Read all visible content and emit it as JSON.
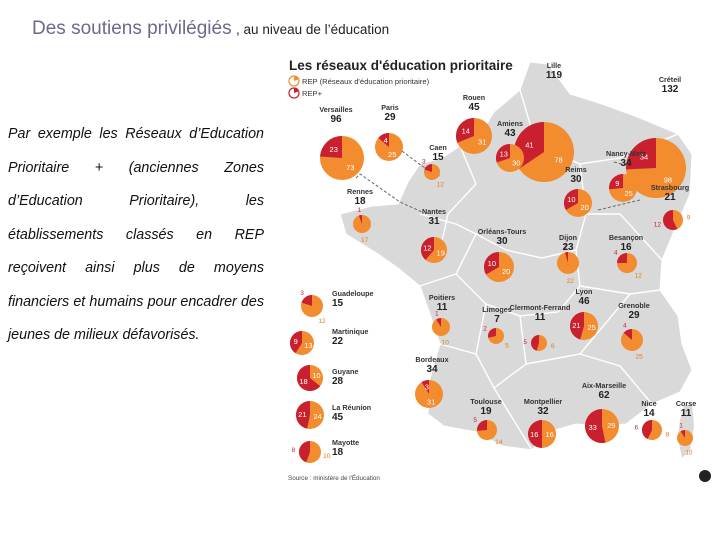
{
  "title": {
    "main": "Des soutiens privilégiés",
    "suffix": ", au niveau de l’éducation"
  },
  "paragraph": "Par exemple les Réseaux d’Education Prioritaire + (anciennes Zones d’Education Prioritaire), les établissements classés en REP reçoivent ainsi plus de moyens financiers et humains pour encadrer des jeunes de milieux défavorisés.",
  "map": {
    "title": "Les réseaux d'éducation prioritaire",
    "legend": [
      {
        "label": "REP (Réseaux d'éducation prioritaire)",
        "color": "#f28c2e"
      },
      {
        "label": "REP+",
        "color": "#c8202f"
      }
    ],
    "source": "Source : ministère de l'Éducation",
    "colors": {
      "rep": "#f28c2e",
      "rep_plus": "#c8202f",
      "land": "#d9d9d9",
      "border": "#ffffff"
    },
    "academies": [
      {
        "name": "Lille",
        "total": "119",
        "rep": 78,
        "rep_plus": 41
      },
      {
        "name": "Créteil",
        "total": "132",
        "rep": 98,
        "rep_plus": 34
      },
      {
        "name": "Versailles",
        "total": "96",
        "rep": 73,
        "rep_plus": 23
      },
      {
        "name": "Paris",
        "total": "29",
        "rep": 25,
        "rep_plus": 4
      },
      {
        "name": "Rouen",
        "total": "45",
        "rep": 31,
        "rep_plus": 14
      },
      {
        "name": "Amiens",
        "total": "43",
        "rep": 30,
        "rep_plus": 13
      },
      {
        "name": "Caen",
        "total": "15",
        "rep": 12,
        "rep_plus": 3
      },
      {
        "name": "Nancy-Metz",
        "total": "34",
        "rep": 25,
        "rep_plus": 9
      },
      {
        "name": "Reims",
        "total": "30",
        "rep": 20,
        "rep_plus": 10
      },
      {
        "name": "Strasbourg",
        "total": "21",
        "rep": 9,
        "rep_plus": 12
      },
      {
        "name": "Rennes",
        "total": "18",
        "rep": 17,
        "rep_plus": 1
      },
      {
        "name": "Nantes",
        "total": "31",
        "rep": 19,
        "rep_plus": 12
      },
      {
        "name": "Orléans-Tours",
        "total": "30",
        "rep": 20,
        "rep_plus": 10
      },
      {
        "name": "Dijon",
        "total": "23",
        "rep": 22,
        "rep_plus": 1
      },
      {
        "name": "Besançon",
        "total": "16",
        "rep": 12,
        "rep_plus": 4
      },
      {
        "name": "Poitiers",
        "total": "11",
        "rep": 10,
        "rep_plus": 1
      },
      {
        "name": "Limoges",
        "total": "7",
        "rep": 5,
        "rep_plus": 2
      },
      {
        "name": "Clermont-Ferrand",
        "total": "11",
        "rep": 6,
        "rep_plus": 5
      },
      {
        "name": "Lyon",
        "total": "46",
        "rep": 25,
        "rep_plus": 21
      },
      {
        "name": "Grenoble",
        "total": "29",
        "rep": 25,
        "rep_plus": 4
      },
      {
        "name": "Bordeaux",
        "total": "34",
        "rep": 31,
        "rep_plus": 3
      },
      {
        "name": "Toulouse",
        "total": "19",
        "rep": 14,
        "rep_plus": 5
      },
      {
        "name": "Montpellier",
        "total": "32",
        "rep": 16,
        "rep_plus": 16
      },
      {
        "name": "Aix-Marseille",
        "total": "62",
        "rep": 29,
        "rep_plus": 33
      },
      {
        "name": "Nice",
        "total": "14",
        "rep": 8,
        "rep_plus": 6
      },
      {
        "name": "Corse",
        "total": "11",
        "rep": 10,
        "rep_plus": 1
      }
    ],
    "overseas": [
      {
        "name": "Guadeloupe",
        "total": "15",
        "rep": 12,
        "rep_plus": 3
      },
      {
        "name": "Martinique",
        "total": "22",
        "rep": 13,
        "rep_plus": 9
      },
      {
        "name": "Guyane",
        "total": "28",
        "rep": 10,
        "rep_plus": 18
      },
      {
        "name": "La Réunion",
        "total": "45",
        "rep": 24,
        "rep_plus": 21
      },
      {
        "name": "Mayotte",
        "total": "18",
        "rep": 10,
        "rep_plus": 8
      }
    ]
  }
}
